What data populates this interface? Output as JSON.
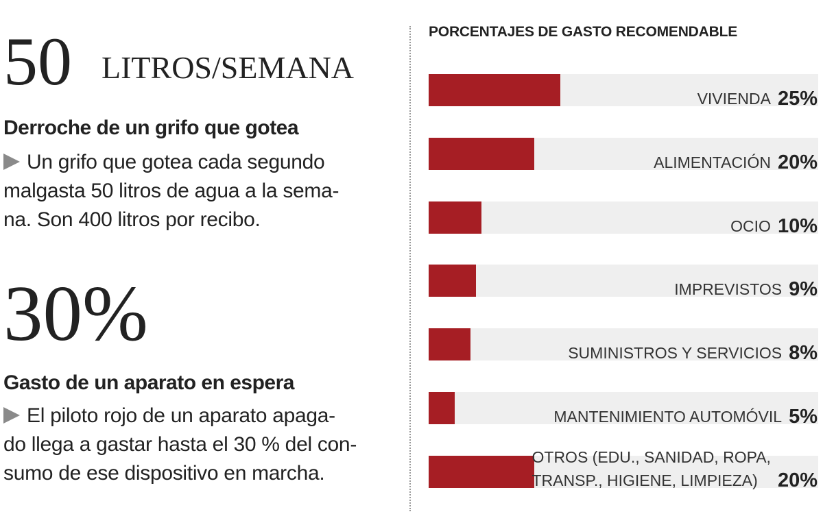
{
  "left": {
    "stat1": "50",
    "unit1": "LITROS/SEMANA",
    "heading1": "Derroche de un grifo que gotea",
    "text1": "Un grifo que gotea cada segundo\nmalgasta 50 litros de agua a la sema-\nna. Son 400 litros por recibo.",
    "stat2": "30%",
    "heading2": "Gasto de un aparato en espera",
    "text2": "El piloto rojo de un aparato apaga-\ndo llega a gastar hasta el 30 % del con-\nsumo de ese dispositivo en marcha."
  },
  "chart_data": {
    "type": "bar",
    "orientation": "horizontal",
    "title": "PORCENTAJES DE GASTO RECOMENDABLE",
    "categories": [
      "VIVIENDA",
      "ALIMENTACIÓN",
      "OCIO",
      "IMPREVISTOS",
      "SUMINISTROS Y SERVICIOS",
      "MANTENIMIENTO AUTOMÓVIL",
      "OTROS (EDU., SANIDAD, ROPA,\nTRANSP., HIGIENE, LIMPIEZA)"
    ],
    "values": [
      25,
      20,
      10,
      9,
      8,
      5,
      20
    ],
    "value_labels": [
      "25%",
      "20%",
      "10%",
      "9%",
      "8%",
      "5%",
      "20%"
    ],
    "color": "#a61e24",
    "xlim": [
      0,
      74
    ]
  }
}
